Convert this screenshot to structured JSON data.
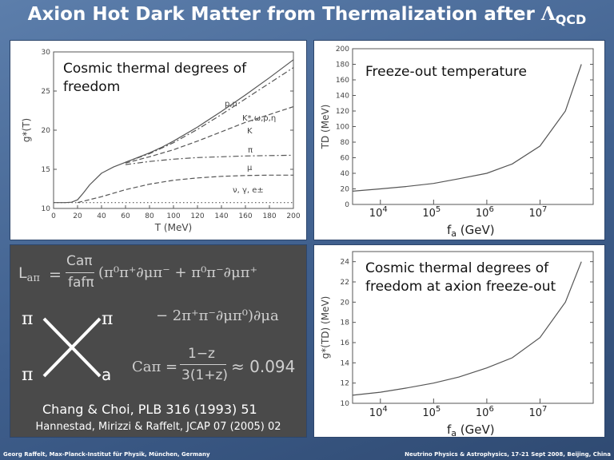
{
  "slide": {
    "title_main": "Axion Hot Dark Matter from Thermalization after ",
    "title_lambda": "Λ",
    "title_sub": "QCD",
    "footer_left": "Georg Raffelt, Max-Planck-Institut für Physik, München, Germany",
    "footer_right": "Neutrino Physics & Astrophysics, 17-21 Sept 2008, Beijing, China"
  },
  "colors": {
    "background": "#4a6a94",
    "dark_panel": "#4a4a4a",
    "curve": "#555555"
  },
  "panel_top_left": {
    "caption": "Cosmic thermal degrees of freedom"
  },
  "panel_top_right": {
    "caption": "Freeze-out temperature",
    "fa_label": "fa (GeV)"
  },
  "panel_bottom_right": {
    "caption": "Cosmic thermal degrees of freedom at axion freeze-out",
    "fa_label": "fa (GeV)"
  },
  "chart_data": [
    {
      "type": "line",
      "xlabel": "T (MeV)",
      "ylabel": "g*(T)",
      "xlim": [
        0,
        200
      ],
      "ylim": [
        10,
        30
      ],
      "xticks": [
        "0",
        "20",
        "40",
        "60",
        "80",
        "100",
        "120",
        "140",
        "160",
        "180",
        "200"
      ],
      "yticks": [
        "10",
        "15",
        "20",
        "25",
        "30"
      ],
      "series": [
        {
          "name": "p,n",
          "style": "solid",
          "x": [
            0,
            10,
            15,
            20,
            25,
            30,
            40,
            50,
            60,
            70,
            80,
            90,
            100,
            120,
            140,
            160,
            180,
            200
          ],
          "y": [
            10.75,
            10.75,
            10.8,
            11.1,
            12,
            13,
            14.5,
            15.3,
            15.9,
            16.5,
            17.1,
            17.8,
            18.6,
            20.4,
            22.4,
            24.5,
            26.7,
            29.0
          ]
        },
        {
          "name": "K*,ω,ρ,η",
          "style": "dashdot",
          "x": [
            60,
            80,
            100,
            120,
            140,
            160,
            180,
            200
          ],
          "y": [
            15.9,
            17.0,
            18.4,
            20.1,
            22.0,
            24.0,
            26.0,
            28.0
          ]
        },
        {
          "name": "K",
          "style": "dashed",
          "x": [
            60,
            80,
            100,
            120,
            140,
            160,
            180,
            200
          ],
          "y": [
            15.8,
            16.6,
            17.5,
            18.6,
            19.8,
            21.0,
            22.0,
            23.0
          ]
        },
        {
          "name": "π",
          "style": "dashdot",
          "x": [
            60,
            80,
            100,
            120,
            140,
            160,
            180,
            200
          ],
          "y": [
            15.6,
            16.0,
            16.3,
            16.5,
            16.6,
            16.7,
            16.75,
            16.8
          ]
        },
        {
          "name": "μ",
          "style": "dashed",
          "x": [
            20,
            40,
            60,
            80,
            100,
            120,
            140,
            160,
            180,
            200
          ],
          "y": [
            10.75,
            11.5,
            12.4,
            13.1,
            13.6,
            13.9,
            14.1,
            14.2,
            14.25,
            14.25
          ]
        },
        {
          "name": "ν, γ, e±",
          "style": "dotted",
          "x": [
            0,
            200
          ],
          "y": [
            10.75,
            10.75
          ]
        }
      ]
    },
    {
      "type": "line",
      "xlabel": "",
      "ylabel": "TD (MeV)",
      "xscale": "log",
      "xlim": [
        3000,
        100000000
      ],
      "ylim": [
        0,
        200
      ],
      "yticks": [
        "0",
        "20",
        "40",
        "60",
        "80",
        "100",
        "120",
        "140",
        "160",
        "180",
        "200"
      ],
      "xticks_base": [
        "10",
        "10",
        "10",
        "10"
      ],
      "xticks_exp": [
        "4",
        "5",
        "6",
        "7"
      ],
      "series": [
        {
          "x": [
            3000,
            10000,
            30000,
            100000,
            300000,
            1000000,
            3000000,
            10000000,
            30000000,
            60000000
          ],
          "y": [
            17,
            20,
            23,
            27,
            33,
            40,
            52,
            75,
            120,
            180
          ]
        }
      ]
    },
    {
      "type": "line",
      "xlabel": "",
      "ylabel": "g*(TD) (MeV)",
      "xscale": "log",
      "xlim": [
        3000,
        100000000
      ],
      "ylim": [
        10,
        25
      ],
      "yticks": [
        "10",
        "12",
        "14",
        "16",
        "18",
        "20",
        "22",
        "24"
      ],
      "xticks_base": [
        "10",
        "10",
        "10",
        "10"
      ],
      "xticks_exp": [
        "4",
        "5",
        "6",
        "7"
      ],
      "series": [
        {
          "x": [
            3000,
            10000,
            30000,
            100000,
            300000,
            1000000,
            3000000,
            10000000,
            30000000,
            60000000
          ],
          "y": [
            10.8,
            11.1,
            11.5,
            12.0,
            12.6,
            13.5,
            14.5,
            16.5,
            20.0,
            24.0
          ]
        }
      ]
    }
  ],
  "formula": {
    "lagrangian_lhs": "L",
    "lagrangian_lhs_sub": "aπ",
    "equals": "=",
    "coef_num": "Caπ",
    "coef_den": "fafπ",
    "term1": "(π⁰π⁺∂μπ⁻ + π⁰π⁻∂μπ⁺",
    "term2": "− 2π⁺π⁻∂μπ⁰)∂μa",
    "c_lhs": "Caπ",
    "c_equals": "=",
    "c_num": "1−z",
    "c_den": "3(1+z)",
    "c_result": "≈ 0.094",
    "vertex_tl": "π",
    "vertex_tr": "π",
    "vertex_bl": "π",
    "vertex_br": "a"
  },
  "references": {
    "ref1": "Chang & Choi, PLB 316 (1993) 51",
    "ref2": "Hannestad, Mirizzi & Raffelt, JCAP 07 (2005) 02"
  }
}
